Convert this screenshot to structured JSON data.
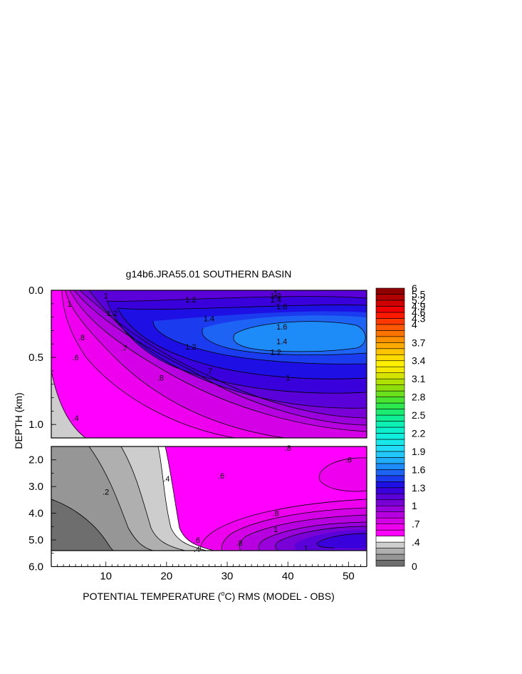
{
  "chart_data": {
    "type": "heatmap",
    "title": "g14b6.JRA55.01 SOUTHERN BASIN",
    "ylabel": "DEPTH (km)",
    "xlabel": {
      "before": "POTENTIAL TEMPERATURE (",
      "sup": "o",
      "after": "C) RMS (MODEL - OBS)"
    },
    "xlim": [
      1,
      53
    ],
    "x_ticks": [
      "10",
      "20",
      "30",
      "40",
      "50"
    ],
    "x_tick_values": [
      10,
      20,
      30,
      40,
      50
    ],
    "upper_panel": {
      "depth_range_km": [
        0.0,
        1.1
      ],
      "y_ticks": [
        "0.0",
        "0.5",
        "1.0"
      ],
      "y_tick_values": [
        0.0,
        0.5,
        1.0
      ]
    },
    "lower_panel": {
      "depth_range_km": [
        1.5,
        6.0
      ],
      "y_ticks": [
        "2.0",
        "3.0",
        "4.0",
        "5.0",
        "6.0"
      ],
      "y_tick_values": [
        2.0,
        3.0,
        4.0,
        5.0,
        6.0
      ],
      "fill_extent_km": 5.4
    },
    "colorbar": {
      "levels": [
        0,
        0.1,
        0.2,
        0.3,
        0.4,
        0.5,
        0.6,
        0.7,
        0.8,
        0.9,
        1.0,
        1.1,
        1.2,
        1.3,
        1.4,
        1.5,
        1.6,
        1.7,
        1.8,
        1.9,
        2.0,
        2.1,
        2.2,
        2.3,
        2.4,
        2.5,
        2.6,
        2.7,
        2.8,
        2.9,
        3.0,
        3.1,
        3.2,
        3.3,
        3.4,
        3.5,
        3.6,
        3.7,
        3.8,
        3.9,
        4.0,
        4.3,
        4.6,
        4.9,
        5.2,
        5.5,
        6.0
      ],
      "labels": [
        "0",
        ".4",
        ".7",
        "1",
        "1.3",
        "1.6",
        "1.9",
        "2.2",
        "2.5",
        "2.8",
        "3.1",
        "3.4",
        "3.7",
        "4",
        "4.3",
        "4.6",
        "4.9",
        "5.2",
        "5.5",
        "6"
      ],
      "label_values": [
        0,
        0.4,
        0.7,
        1.0,
        1.3,
        1.6,
        1.9,
        2.2,
        2.5,
        2.8,
        3.1,
        3.4,
        3.7,
        4.0,
        4.3,
        4.6,
        4.9,
        5.2,
        5.5,
        6.0
      ],
      "colors": [
        "#6e6e6e",
        "#969696",
        "#afafaf",
        "#cdcdcd",
        "#ffffff",
        "#ff00ff",
        "#ee00ee",
        "#d400e6",
        "#b600e0",
        "#9a00dc",
        "#7a00d8",
        "#5a00d8",
        "#3a00dc",
        "#1e10e4",
        "#1a3cee",
        "#1e64f4",
        "#1e8cf8",
        "#20aefa",
        "#22c8fa",
        "#20dcf6",
        "#18e8ea",
        "#10eede",
        "#0cf0cc",
        "#0cf0b4",
        "#10ee96",
        "#1aec72",
        "#2ce84e",
        "#48e430",
        "#6ae01c",
        "#8ede0c",
        "#b0e000",
        "#d4e400",
        "#f4ea00",
        "#fff000",
        "#ffdc00",
        "#ffc400",
        "#ffaa00",
        "#ff9000",
        "#ff7400",
        "#ff5800",
        "#ff3800",
        "#ff1800",
        "#f00000",
        "#d00000",
        "#b00000",
        "#900000"
      ]
    },
    "contour_labels_upper": [
      {
        "text": "1",
        "x": 10,
        "depth": 0.04
      },
      {
        "text": "1",
        "x": 38,
        "depth": 0.02
      },
      {
        "text": "1.2",
        "x": 24,
        "depth": 0.07
      },
      {
        "text": "1.2",
        "x": 38,
        "depth": 0.04
      },
      {
        "text": "1.4",
        "x": 38,
        "depth": 0.07
      },
      {
        "text": "1.2",
        "x": 11,
        "depth": 0.17
      },
      {
        "text": "1",
        "x": 4,
        "depth": 0.1
      },
      {
        "text": "1.6",
        "x": 39,
        "depth": 0.12
      },
      {
        "text": "1.4",
        "x": 27,
        "depth": 0.21
      },
      {
        "text": "1.6",
        "x": 39,
        "depth": 0.27
      },
      {
        "text": "1.4",
        "x": 39,
        "depth": 0.38
      },
      {
        "text": "1.2",
        "x": 24,
        "depth": 0.42
      },
      {
        "text": "1.2",
        "x": 38,
        "depth": 0.46
      },
      {
        "text": ".8",
        "x": 6,
        "depth": 0.35
      },
      {
        "text": ".7",
        "x": 13,
        "depth": 0.43
      },
      {
        "text": ".6",
        "x": 5,
        "depth": 0.5
      },
      {
        "text": ".7",
        "x": 27,
        "depth": 0.6
      },
      {
        "text": ".8",
        "x": 19,
        "depth": 0.65
      },
      {
        "text": "1",
        "x": 40,
        "depth": 0.65
      },
      {
        "text": ".4",
        "x": 5,
        "depth": 0.95
      }
    ],
    "contour_labels_lower": [
      {
        "text": ".8",
        "x": 40,
        "depth": 1.55
      },
      {
        "text": ".6",
        "x": 50,
        "depth": 2.0
      },
      {
        "text": ".4",
        "x": 20,
        "depth": 2.7
      },
      {
        "text": ".2",
        "x": 10,
        "depth": 3.2
      },
      {
        "text": ".6",
        "x": 29,
        "depth": 2.6
      },
      {
        "text": ".8",
        "x": 38,
        "depth": 4.0
      },
      {
        "text": "1",
        "x": 38,
        "depth": 4.6
      },
      {
        "text": ".6",
        "x": 25,
        "depth": 5.0
      },
      {
        "text": ".8",
        "x": 32,
        "depth": 5.1
      },
      {
        "text": "1",
        "x": 43,
        "depth": 5.3
      },
      {
        "text": ".4",
        "x": 25,
        "depth": 5.35
      }
    ]
  }
}
